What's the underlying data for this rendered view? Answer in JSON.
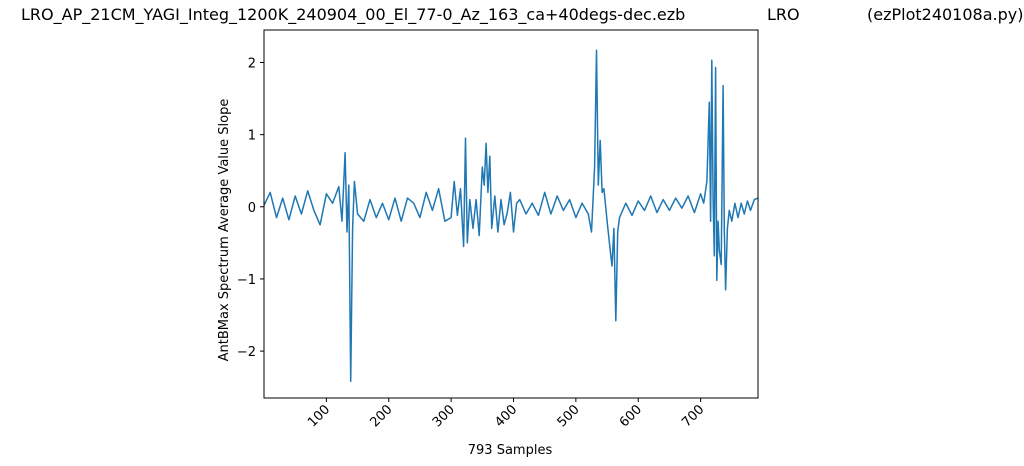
{
  "title": {
    "file": "LRO_AP_21CM_YAGI_Integ_1200K_240904_00_El_77-0_Az_163_ca+40degs-dec.ezb",
    "site": "LRO",
    "program": "(ezPlot240108a.py)"
  },
  "colors": {
    "line": "#1f77b4",
    "axes": "#000000",
    "background": "#ffffff"
  },
  "chart_data": {
    "type": "line",
    "xlabel": "793 Samples",
    "ylabel": "AntBMax Spectrum Average Value Slope",
    "xlim": [
      0,
      792
    ],
    "ylim": [
      -2.65,
      2.45
    ],
    "xticks": [
      100,
      200,
      300,
      400,
      500,
      600,
      700
    ],
    "yticks": [
      -2,
      -1,
      0,
      1,
      2
    ],
    "grid": false,
    "legend": "none",
    "series": [
      {
        "points": [
          [
            0,
            0.02
          ],
          [
            10,
            0.2
          ],
          [
            20,
            -0.15
          ],
          [
            30,
            0.12
          ],
          [
            40,
            -0.18
          ],
          [
            50,
            0.15
          ],
          [
            60,
            -0.1
          ],
          [
            70,
            0.22
          ],
          [
            80,
            -0.05
          ],
          [
            90,
            -0.25
          ],
          [
            100,
            0.18
          ],
          [
            110,
            0.05
          ],
          [
            120,
            0.28
          ],
          [
            125,
            -0.2
          ],
          [
            130,
            0.75
          ],
          [
            133,
            -0.35
          ],
          [
            136,
            0.3
          ],
          [
            139,
            -2.42
          ],
          [
            142,
            -0.3
          ],
          [
            145,
            0.35
          ],
          [
            150,
            -0.1
          ],
          [
            160,
            -0.2
          ],
          [
            170,
            0.1
          ],
          [
            180,
            -0.15
          ],
          [
            190,
            0.05
          ],
          [
            200,
            -0.18
          ],
          [
            210,
            0.12
          ],
          [
            220,
            -0.2
          ],
          [
            230,
            0.12
          ],
          [
            240,
            0.05
          ],
          [
            250,
            -0.15
          ],
          [
            260,
            0.2
          ],
          [
            270,
            -0.05
          ],
          [
            280,
            0.25
          ],
          [
            290,
            -0.2
          ],
          [
            300,
            -0.15
          ],
          [
            305,
            0.35
          ],
          [
            310,
            -0.12
          ],
          [
            315,
            0.25
          ],
          [
            320,
            -0.55
          ],
          [
            323,
            0.95
          ],
          [
            326,
            -0.5
          ],
          [
            330,
            0.1
          ],
          [
            335,
            -0.3
          ],
          [
            340,
            0.1
          ],
          [
            345,
            -0.4
          ],
          [
            350,
            0.55
          ],
          [
            353,
            0.3
          ],
          [
            356,
            0.88
          ],
          [
            359,
            0.2
          ],
          [
            362,
            0.7
          ],
          [
            365,
            -0.3
          ],
          [
            370,
            0.15
          ],
          [
            375,
            -0.35
          ],
          [
            380,
            0.1
          ],
          [
            385,
            -0.25
          ],
          [
            390,
            -0.08
          ],
          [
            395,
            0.2
          ],
          [
            400,
            -0.35
          ],
          [
            405,
            0.05
          ],
          [
            410,
            0.1
          ],
          [
            420,
            -0.1
          ],
          [
            430,
            0.05
          ],
          [
            440,
            -0.12
          ],
          [
            450,
            0.2
          ],
          [
            460,
            -0.1
          ],
          [
            470,
            0.15
          ],
          [
            480,
            -0.05
          ],
          [
            490,
            0.1
          ],
          [
            500,
            -0.15
          ],
          [
            510,
            0.05
          ],
          [
            520,
            -0.1
          ],
          [
            525,
            -0.35
          ],
          [
            530,
            0.55
          ],
          [
            533,
            2.17
          ],
          [
            536,
            0.3
          ],
          [
            539,
            0.92
          ],
          [
            542,
            0.2
          ],
          [
            545,
            0.25
          ],
          [
            550,
            -0.2
          ],
          [
            555,
            -0.6
          ],
          [
            558,
            -0.82
          ],
          [
            561,
            -0.3
          ],
          [
            564,
            -1.58
          ],
          [
            567,
            -0.35
          ],
          [
            570,
            -0.15
          ],
          [
            575,
            -0.05
          ],
          [
            580,
            0.05
          ],
          [
            590,
            -0.12
          ],
          [
            600,
            0.08
          ],
          [
            610,
            -0.05
          ],
          [
            620,
            0.15
          ],
          [
            630,
            -0.08
          ],
          [
            640,
            0.1
          ],
          [
            650,
            -0.05
          ],
          [
            660,
            0.12
          ],
          [
            670,
            -0.02
          ],
          [
            680,
            0.15
          ],
          [
            690,
            -0.08
          ],
          [
            700,
            0.18
          ],
          [
            705,
            0.05
          ],
          [
            710,
            0.35
          ],
          [
            714,
            1.45
          ],
          [
            716,
            -0.2
          ],
          [
            718,
            2.03
          ],
          [
            720,
            0.1
          ],
          [
            722,
            -0.68
          ],
          [
            724,
            1.93
          ],
          [
            726,
            -1.02
          ],
          [
            728,
            -0.2
          ],
          [
            730,
            -0.6
          ],
          [
            733,
            -0.8
          ],
          [
            736,
            1.68
          ],
          [
            738,
            -0.3
          ],
          [
            740,
            -1.15
          ],
          [
            743,
            -0.3
          ],
          [
            746,
            -0.05
          ],
          [
            750,
            -0.2
          ],
          [
            755,
            0.05
          ],
          [
            760,
            -0.15
          ],
          [
            765,
            0.05
          ],
          [
            770,
            -0.1
          ],
          [
            775,
            0.08
          ],
          [
            780,
            -0.05
          ],
          [
            786,
            0.1
          ],
          [
            792,
            0.12
          ]
        ]
      }
    ]
  }
}
